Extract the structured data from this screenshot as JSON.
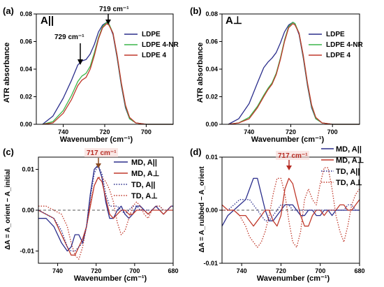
{
  "chart_data": [
    {
      "panel": "(a)",
      "type": "line",
      "label": "A||",
      "xlabel": "Wavenumber (cm⁻¹)",
      "ylabel": "ATR absorbance",
      "xlim": [
        753,
        687
      ],
      "ylim": [
        0,
        0.08
      ],
      "xticks": [
        740,
        720,
        700
      ],
      "xtick_labels": [
        "740",
        "720",
        "700"
      ],
      "yticks": [
        0.0,
        0.02,
        0.04,
        0.06,
        0.08
      ],
      "ytick_labels": [
        "0.00",
        "0.02",
        "0.04",
        "0.06",
        "0.08"
      ],
      "legend_position": "top-right",
      "annotations": [
        {
          "text": "719 cm⁻¹",
          "x": 719,
          "y": 0.074
        },
        {
          "text": "729 cm⁻¹",
          "x": 729,
          "y": 0.048
        }
      ],
      "series": [
        {
          "name": "LDPE",
          "color": "#2b2e8c",
          "x": [
            750,
            745,
            740,
            736,
            733,
            731,
            729,
            727,
            725,
            723,
            721,
            719,
            718,
            716,
            714,
            712,
            710,
            708,
            705,
            700,
            695,
            690,
            687
          ],
          "y": [
            0,
            0.006,
            0.019,
            0.032,
            0.043,
            0.046,
            0.047,
            0.051,
            0.058,
            0.067,
            0.072,
            0.074,
            0.073,
            0.065,
            0.048,
            0.028,
            0.012,
            0.004,
            0.001,
            0,
            0,
            0,
            0
          ]
        },
        {
          "name": "LDPE 4-NR",
          "color": "#3bb54a",
          "x": [
            750,
            745,
            740,
            736,
            733,
            731,
            729,
            727,
            725,
            723,
            721,
            719,
            718,
            716,
            714,
            712,
            710,
            708,
            705,
            700,
            695,
            690,
            687
          ],
          "y": [
            0,
            0.002,
            0.01,
            0.021,
            0.031,
            0.035,
            0.037,
            0.042,
            0.052,
            0.063,
            0.071,
            0.074,
            0.073,
            0.066,
            0.049,
            0.029,
            0.013,
            0.004,
            0.001,
            0,
            0,
            0,
            0
          ]
        },
        {
          "name": "LDPE 4",
          "color": "#c0392b",
          "x": [
            750,
            745,
            740,
            736,
            733,
            731,
            729,
            727,
            725,
            723,
            721,
            719,
            718,
            716,
            714,
            712,
            710,
            708,
            705,
            700,
            695,
            690,
            687
          ],
          "y": [
            0,
            0.001,
            0.008,
            0.018,
            0.028,
            0.032,
            0.034,
            0.04,
            0.05,
            0.062,
            0.07,
            0.073,
            0.072,
            0.066,
            0.05,
            0.03,
            0.014,
            0.005,
            0.001,
            0,
            0,
            0,
            0
          ]
        }
      ]
    },
    {
      "panel": "(b)",
      "type": "line",
      "label": "A⊥",
      "xlabel": "Wavenumber (cm⁻¹)",
      "ylabel": "ATR absorbance",
      "xlim": [
        753,
        687
      ],
      "ylim": [
        0,
        0.08
      ],
      "xticks": [
        740,
        720,
        700
      ],
      "xtick_labels": [
        "740",
        "720",
        "700"
      ],
      "yticks": [
        0.0,
        0.02,
        0.04,
        0.06,
        0.08
      ],
      "ytick_labels": [
        "0.00",
        "0.02",
        "0.04",
        "0.06",
        "0.08"
      ],
      "legend_position": "top-right",
      "series": [
        {
          "name": "LDPE",
          "color": "#2b2e8c",
          "x": [
            750,
            745,
            740,
            736,
            733,
            731,
            729,
            727,
            725,
            723,
            721,
            719,
            718,
            716,
            714,
            712,
            710,
            708,
            705,
            700,
            695,
            690,
            687
          ],
          "y": [
            0,
            0.004,
            0.015,
            0.03,
            0.041,
            0.045,
            0.048,
            0.052,
            0.059,
            0.067,
            0.072,
            0.074,
            0.073,
            0.065,
            0.048,
            0.028,
            0.012,
            0.004,
            0.001,
            0,
            0,
            0,
            0
          ]
        },
        {
          "name": "LDPE 4-NR",
          "color": "#3bb54a",
          "x": [
            750,
            745,
            740,
            736,
            733,
            731,
            729,
            727,
            725,
            723,
            721,
            719,
            718,
            716,
            714,
            712,
            710,
            708,
            705,
            700,
            695,
            690,
            687
          ],
          "y": [
            0,
            0.001,
            0.005,
            0.013,
            0.021,
            0.026,
            0.03,
            0.037,
            0.048,
            0.061,
            0.071,
            0.074,
            0.073,
            0.066,
            0.049,
            0.029,
            0.013,
            0.004,
            0.001,
            0,
            0,
            0,
            0
          ]
        },
        {
          "name": "LDPE 4",
          "color": "#c0392b",
          "x": [
            750,
            745,
            740,
            736,
            733,
            731,
            729,
            727,
            725,
            723,
            721,
            719,
            718,
            716,
            714,
            712,
            710,
            708,
            705,
            700,
            695,
            690,
            687
          ],
          "y": [
            0,
            0.001,
            0.004,
            0.012,
            0.02,
            0.025,
            0.029,
            0.036,
            0.047,
            0.06,
            0.07,
            0.073,
            0.072,
            0.066,
            0.05,
            0.03,
            0.014,
            0.005,
            0.001,
            0,
            0,
            0,
            0
          ]
        }
      ]
    },
    {
      "panel": "(c)",
      "type": "line",
      "xlabel": "Wavenumber (cm⁻¹)",
      "ylabel": "ΔA = A_orient − A_initial",
      "xlim": [
        750,
        680
      ],
      "ylim": [
        -0.013,
        0.013
      ],
      "xticks": [
        740,
        720,
        700,
        680
      ],
      "xtick_labels": [
        "740",
        "720",
        "700",
        "680"
      ],
      "yticks": [
        -0.01,
        0.0,
        0.01
      ],
      "ytick_labels": [
        "-0.01",
        "0.00",
        "0.01"
      ],
      "legend_position": "top-right",
      "annotations": [
        {
          "text": "717 cm⁻¹",
          "x": 717,
          "y": 0.012
        }
      ],
      "series": [
        {
          "name": "MD, A||",
          "color": "#2b2e8c",
          "dash": "solid",
          "x": [
            750,
            746,
            742,
            738,
            735,
            733,
            731,
            729,
            727,
            725,
            723,
            721,
            719,
            717,
            715,
            713,
            711,
            709,
            707,
            705,
            703,
            701,
            699,
            697,
            695,
            693,
            691,
            689,
            687,
            685,
            683,
            681,
            680
          ],
          "y": [
            -0.002,
            -0.002,
            -0.004,
            -0.008,
            -0.01,
            -0.009,
            -0.006,
            -0.006,
            -0.008,
            -0.004,
            0.004,
            0.01,
            0.011,
            0.008,
            0.002,
            -0.002,
            -0.002,
            0.0,
            0.001,
            -0.001,
            -0.002,
            -0.001,
            0.001,
            0.001,
            0.0,
            -0.001,
            0.0,
            0.001,
            0.0,
            -0.001,
            0.0,
            0.001,
            0.001
          ]
        },
        {
          "name": "MD, A⊥",
          "color": "#c0392b",
          "dash": "solid",
          "x": [
            750,
            746,
            742,
            738,
            735,
            733,
            731,
            729,
            727,
            725,
            723,
            721,
            719,
            717,
            715,
            713,
            711,
            709,
            707,
            705,
            703,
            701,
            699,
            697,
            695,
            693,
            691,
            689,
            687,
            685,
            683,
            681,
            680
          ],
          "y": [
            0.0,
            -0.001,
            -0.002,
            -0.006,
            -0.009,
            -0.011,
            -0.011,
            -0.009,
            -0.007,
            -0.004,
            0.001,
            0.006,
            0.008,
            0.007,
            0.003,
            -0.001,
            -0.002,
            -0.001,
            0.0,
            0.0,
            -0.001,
            -0.001,
            0.0,
            0.0,
            0.0,
            -0.001,
            0.0,
            0.0,
            0.0,
            -0.001,
            0.0,
            0.0,
            0.0
          ]
        },
        {
          "name": "TD, A||",
          "color": "#2b2e8c",
          "dash": "dotted",
          "x": [
            750,
            746,
            742,
            738,
            735,
            733,
            731,
            729,
            727,
            725,
            723,
            721,
            719,
            717,
            715,
            713,
            711,
            709,
            707,
            705,
            703,
            701,
            699,
            697,
            695,
            693,
            691,
            689,
            687,
            685,
            683,
            681,
            680
          ],
          "y": [
            0.0,
            -0.001,
            -0.002,
            -0.005,
            -0.009,
            -0.01,
            -0.01,
            -0.009,
            -0.008,
            -0.004,
            0.003,
            0.009,
            0.011,
            0.009,
            0.004,
            0.001,
            0.001,
            0.001,
            0.0,
            -0.001,
            0.0,
            0.001,
            0.001,
            0.0,
            0.0,
            0.0,
            0.0,
            0.001,
            0.001,
            0.0,
            0.0,
            0.001,
            0.001
          ]
        },
        {
          "name": "TD, A⊥",
          "color": "#c0392b",
          "dash": "dotted",
          "x": [
            750,
            746,
            742,
            738,
            735,
            733,
            731,
            729,
            727,
            725,
            723,
            721,
            719,
            717,
            715,
            713,
            711,
            709,
            707,
            705,
            703,
            701,
            699,
            697,
            695,
            693,
            691,
            689,
            687,
            685,
            683,
            681,
            680
          ],
          "y": [
            0.001,
            0.001,
            0.0,
            -0.001,
            -0.004,
            -0.008,
            -0.011,
            -0.012,
            -0.009,
            -0.004,
            0.002,
            0.006,
            0.008,
            0.008,
            0.007,
            0.005,
            0.002,
            -0.003,
            -0.006,
            -0.005,
            -0.002,
            0.001,
            0.002,
            0.001,
            -0.001,
            -0.002,
            0.0,
            0.001,
            0.001,
            0.0,
            0.0,
            0.001,
            0.001
          ]
        }
      ]
    },
    {
      "panel": "(d)",
      "type": "line",
      "xlabel": "Wavenumber (cm⁻¹)",
      "ylabel": "ΔA = A_rubbed − A_orient",
      "xlim": [
        750,
        680
      ],
      "ylim": [
        -0.01,
        0.01
      ],
      "xticks": [
        740,
        720,
        700,
        680
      ],
      "xtick_labels": [
        "740",
        "720",
        "700",
        "680"
      ],
      "yticks": [
        -0.01,
        0.0,
        0.01
      ],
      "ytick_labels": [
        "-0.01",
        "0.00",
        "0.01"
      ],
      "legend_position": "top-right",
      "annotations": [
        {
          "text": "717 cm⁻¹",
          "x": 717,
          "y": 0.008
        }
      ],
      "series": [
        {
          "name": "MD, A||",
          "color": "#2b2e8c",
          "dash": "solid",
          "x": [
            750,
            747,
            744,
            741,
            738,
            736,
            734,
            732,
            730,
            728,
            726,
            724,
            722,
            720,
            718,
            716,
            714,
            712,
            710,
            708,
            706,
            704,
            702,
            700,
            698,
            696,
            694,
            692,
            690,
            688,
            686,
            684,
            682,
            680
          ],
          "y": [
            -0.003,
            -0.001,
            0.0,
            0.001,
            0.002,
            0.004,
            0.006,
            0.006,
            0.003,
            0.0,
            -0.002,
            -0.002,
            -0.001,
            0.0,
            0.001,
            0.001,
            0.001,
            0.0,
            -0.001,
            -0.001,
            0.0,
            0.0,
            -0.001,
            -0.001,
            0.0,
            0.0,
            -0.001,
            0.0,
            0.0,
            0.0,
            0.0,
            0.0,
            0.0,
            0.0
          ]
        },
        {
          "name": "MD, A⊥",
          "color": "#c0392b",
          "dash": "solid",
          "x": [
            750,
            747,
            744,
            741,
            738,
            736,
            734,
            732,
            730,
            728,
            726,
            724,
            722,
            720,
            718,
            716,
            714,
            712,
            710,
            708,
            706,
            704,
            702,
            700,
            698,
            696,
            694,
            692,
            690,
            688,
            686,
            684,
            682,
            680
          ],
          "y": [
            0.001,
            0.0,
            0.0,
            -0.001,
            -0.001,
            -0.002,
            -0.003,
            -0.002,
            -0.001,
            0.0,
            0.0,
            -0.002,
            -0.003,
            -0.001,
            0.004,
            0.006,
            0.005,
            0.002,
            -0.001,
            -0.003,
            -0.003,
            -0.001,
            0.0,
            0.0,
            -0.001,
            0.0,
            0.0,
            0.0,
            0.001,
            0.001,
            0.0,
            0.0,
            0.001,
            0.002
          ]
        },
        {
          "name": "TD, A||",
          "color": "#2b2e8c",
          "dash": "dotted",
          "x": [
            750,
            747,
            744,
            741,
            738,
            736,
            734,
            732,
            730,
            728,
            726,
            724,
            722,
            720,
            718,
            716,
            714,
            712,
            710,
            708,
            706,
            704,
            702,
            700,
            698,
            696,
            694,
            692,
            690,
            688,
            686,
            684,
            682,
            680
          ],
          "y": [
            0.0,
            0.0,
            0.001,
            0.002,
            0.002,
            0.002,
            0.001,
            0.0,
            -0.001,
            -0.002,
            -0.002,
            -0.001,
            0.0,
            0.001,
            0.001,
            0.001,
            0.0,
            0.0,
            0.0,
            0.0,
            0.0,
            0.0,
            0.0,
            0.0,
            0.0,
            0.0,
            0.0,
            0.0,
            0.0,
            0.0,
            0.001,
            0.001,
            0.0,
            0.0
          ]
        },
        {
          "name": "TD, A⊥",
          "color": "#c0392b",
          "dash": "dotted",
          "x": [
            750,
            747,
            744,
            741,
            738,
            736,
            734,
            732,
            730,
            728,
            726,
            724,
            722,
            720,
            718,
            716,
            714,
            712,
            710,
            708,
            706,
            704,
            702,
            700,
            698,
            696,
            694,
            692,
            690,
            688,
            686,
            684,
            682,
            680
          ],
          "y": [
            0.0,
            0.0,
            0.0,
            -0.001,
            -0.003,
            -0.005,
            -0.006,
            -0.007,
            -0.006,
            -0.004,
            -0.001,
            0.003,
            0.006,
            0.006,
            0.003,
            -0.002,
            -0.006,
            -0.007,
            -0.004,
            0.002,
            0.004,
            0.002,
            0.001,
            0.005,
            0.008,
            0.008,
            0.004,
            -0.001,
            -0.004,
            -0.006,
            -0.003,
            0.001,
            0.003,
            0.004
          ]
        }
      ]
    }
  ]
}
